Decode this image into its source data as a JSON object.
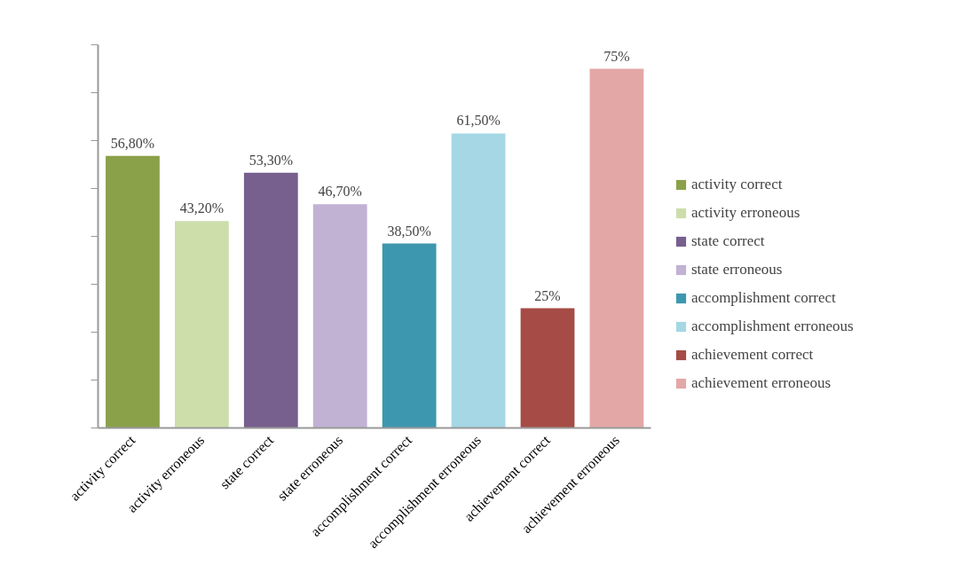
{
  "chart_data": {
    "type": "bar",
    "categories": [
      "activity correct",
      "activity erroneous",
      "state correct",
      "state erroneous",
      "accomplishment correct",
      "accomplishment erroneous",
      "achievement correct",
      "achievement erroneous"
    ],
    "series": [
      {
        "name": "activity correct",
        "color": "#8aa14a",
        "values": [
          56.8,
          null,
          null,
          null,
          null,
          null,
          null,
          null
        ],
        "value_labels": [
          "56,80%",
          null,
          null,
          null,
          null,
          null,
          null,
          null
        ]
      },
      {
        "name": "activity erroneous",
        "color": "#cddeab",
        "values": [
          null,
          43.2,
          null,
          null,
          null,
          null,
          null,
          null
        ],
        "value_labels": [
          null,
          "43,20%",
          null,
          null,
          null,
          null,
          null,
          null
        ]
      },
      {
        "name": "state correct",
        "color": "#775f8e",
        "values": [
          null,
          null,
          53.3,
          null,
          null,
          null,
          null,
          null
        ],
        "value_labels": [
          null,
          null,
          "53,30%",
          null,
          null,
          null,
          null,
          null
        ]
      },
      {
        "name": "state erroneous",
        "color": "#c1b1d3",
        "values": [
          null,
          null,
          null,
          46.7,
          null,
          null,
          null,
          null
        ],
        "value_labels": [
          null,
          null,
          null,
          "46,70%",
          null,
          null,
          null,
          null
        ]
      },
      {
        "name": "accomplishment correct",
        "color": "#3d97ae",
        "values": [
          null,
          null,
          null,
          null,
          38.5,
          null,
          null,
          null
        ],
        "value_labels": [
          null,
          null,
          null,
          null,
          "38,50%",
          null,
          null,
          null
        ]
      },
      {
        "name": "accomplishment erroneous",
        "color": "#a5d7e5",
        "values": [
          null,
          null,
          null,
          null,
          null,
          61.5,
          null,
          null
        ],
        "value_labels": [
          null,
          null,
          null,
          null,
          null,
          "61,50%",
          null,
          null
        ]
      },
      {
        "name": "achievement correct",
        "color": "#a64b45",
        "values": [
          null,
          null,
          null,
          null,
          null,
          null,
          25,
          null
        ],
        "value_labels": [
          null,
          null,
          null,
          null,
          null,
          null,
          "25%",
          null
        ]
      },
      {
        "name": "achievement erroneous",
        "color": "#e3a7a6",
        "values": [
          null,
          null,
          null,
          null,
          null,
          null,
          null,
          75
        ],
        "value_labels": [
          null,
          null,
          null,
          null,
          null,
          null,
          null,
          "75%"
        ]
      }
    ],
    "ylim": [
      0,
      80
    ],
    "yticks": [
      {
        "value": 0,
        "label": null
      },
      {
        "value": 10,
        "label": null
      },
      {
        "value": 20,
        "label": null
      },
      {
        "value": 30,
        "label": null
      },
      {
        "value": 40,
        "label": null
      },
      {
        "value": 50,
        "label": null
      },
      {
        "value": 60,
        "label": null
      },
      {
        "value": 70,
        "label": null
      },
      {
        "value": 80,
        "label": null
      }
    ],
    "tick_labels": "x",
    "grid": false,
    "legend": "right"
  }
}
